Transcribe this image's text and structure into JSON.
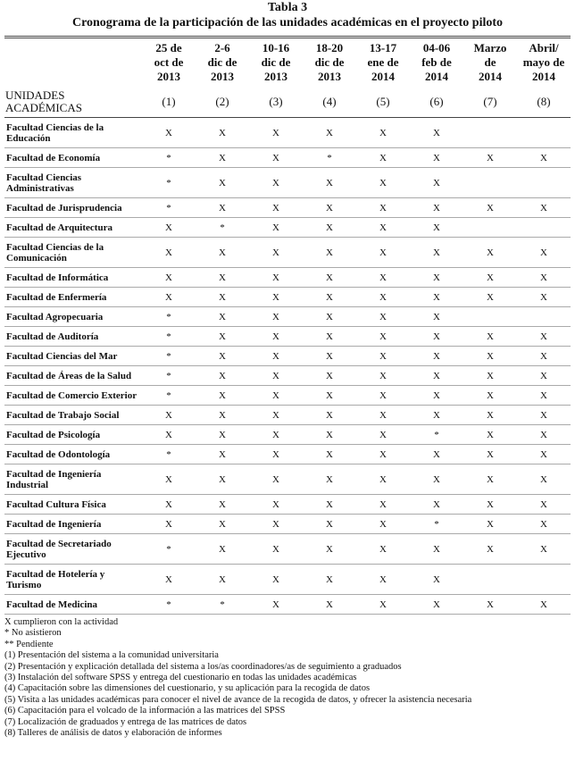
{
  "header": {
    "label": "Tabla 3",
    "title": "Cronograma de la participación de las unidades académicas en el proyecto piloto"
  },
  "table": {
    "columns": [
      [
        "25 de",
        "oct de",
        "2013"
      ],
      [
        "2-6",
        "dic de",
        "2013"
      ],
      [
        "10-16",
        "dic de",
        "2013"
      ],
      [
        "18-20",
        "dic de",
        "2013"
      ],
      [
        "13-17",
        "ene de",
        "2014"
      ],
      [
        "04-06",
        "feb de",
        "2014"
      ],
      [
        "Marzo",
        "de",
        "2014"
      ],
      [
        "Abril/",
        "mayo de",
        "2014"
      ]
    ],
    "unit_label": "UNIDADES ACADÉMICAS",
    "column_numbers": [
      "(1)",
      "(2)",
      "(3)",
      "(4)",
      "(5)",
      "(6)",
      "(7)",
      "(8)"
    ],
    "rows": [
      [
        "Facultad Ciencias de la Educación",
        "X",
        "X",
        "X",
        "X",
        "X",
        "X",
        null,
        null
      ],
      [
        "Facultad de Economía",
        "*",
        "X",
        "X",
        "*",
        "X",
        "X",
        "X",
        "X"
      ],
      [
        "Facultad Ciencias Administrativas",
        "*",
        "X",
        "X",
        "X",
        "X",
        "X",
        null,
        null
      ],
      [
        "Facultad de Jurisprudencia",
        "*",
        "X",
        "X",
        "X",
        "X",
        "X",
        "X",
        "X"
      ],
      [
        "Facultad de Arquitectura",
        "X",
        "*",
        "X",
        "X",
        "X",
        "X",
        null,
        null
      ],
      [
        "Facultad Ciencias de la Comunicación",
        "X",
        "X",
        "X",
        "X",
        "X",
        "X",
        "X",
        "X"
      ],
      [
        "Facultad de Informática",
        "X",
        "X",
        "X",
        "X",
        "X",
        "X",
        "X",
        "X"
      ],
      [
        "Facultad de Enfermería",
        "X",
        "X",
        "X",
        "X",
        "X",
        "X",
        "X",
        "X"
      ],
      [
        "Facultad Agropecuaria",
        "*",
        "X",
        "X",
        "X",
        "X",
        "X",
        null,
        null
      ],
      [
        "Facultad de Auditoría",
        "*",
        "X",
        "X",
        "X",
        "X",
        "X",
        "X",
        "X"
      ],
      [
        "Facultad Ciencias del Mar",
        "*",
        "X",
        "X",
        "X",
        "X",
        "X",
        "X",
        "X"
      ],
      [
        "Facultad de Áreas de la Salud",
        "*",
        "X",
        "X",
        "X",
        "X",
        "X",
        "X",
        "X"
      ],
      [
        "Facultad de Comercio Exterior",
        "*",
        "X",
        "X",
        "X",
        "X",
        "X",
        "X",
        "X"
      ],
      [
        "Facultad de Trabajo Social",
        "X",
        "X",
        "X",
        "X",
        "X",
        "X",
        "X",
        "X"
      ],
      [
        "Facultad de Psicología",
        "X",
        "X",
        "X",
        "X",
        "X",
        "*",
        "X",
        "X"
      ],
      [
        "Facultad de Odontología",
        "*",
        "X",
        "X",
        "X",
        "X",
        "X",
        "X",
        "X"
      ],
      [
        "Facultad de Ingeniería Industrial",
        "X",
        "X",
        "X",
        "X",
        "X",
        "X",
        "X",
        "X"
      ],
      [
        "Facultad Cultura Física",
        "X",
        "X",
        "X",
        "X",
        "X",
        "X",
        "X",
        "X"
      ],
      [
        "Facultad de Ingeniería",
        "X",
        "X",
        "X",
        "X",
        "X",
        "*",
        "X",
        "X"
      ],
      [
        "Facultad de Secretariado Ejecutivo",
        "*",
        "X",
        "X",
        "X",
        "X",
        "X",
        "X",
        "X"
      ],
      [
        "Facultad de Hotelería y Turismo",
        "X",
        "X",
        "X",
        "X",
        "X",
        "X",
        null,
        null
      ],
      [
        "Facultad de Medicina",
        "*",
        "*",
        "X",
        "X",
        "X",
        "X",
        "X",
        "X"
      ]
    ]
  },
  "notes": [
    "X cumplieron con la actividad",
    "* No asistieron",
    "** Pendiente",
    "(1) Presentación del sistema a la comunidad universitaria",
    "(2) Presentación y explicación detallada del sistema a los/as coordinadores/as de seguimiento a graduados",
    "(3) Instalación del software SPSS y entrega del cuestionario en todas las unidades académicas",
    "(4) Capacitación sobre las dimensiones del cuestionario, y su aplicación para la recogida de datos",
    "(5) Visita a las unidades académicas para conocer el nivel de avance de la recogida de datos, y ofrecer la asistencia necesaria",
    "(6) Capacitación para el volcado de la información a las matrices del SPSS",
    "(7) Localización de graduados y entrega de las matrices de datos",
    "(8) Talleres de análisis de datos y elaboración de informes"
  ]
}
